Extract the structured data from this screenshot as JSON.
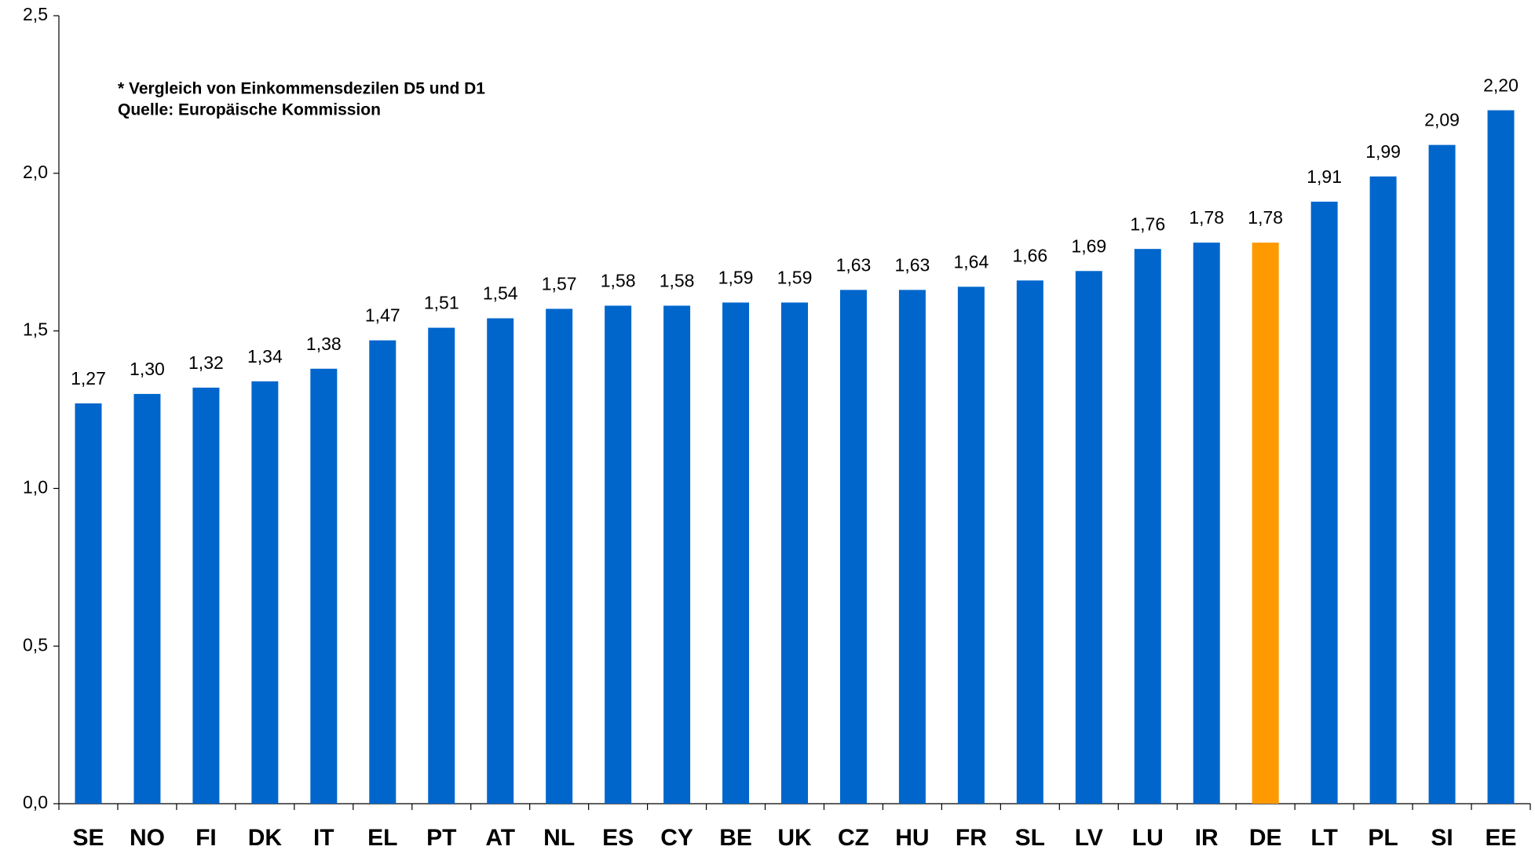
{
  "chart_data": {
    "type": "bar",
    "annotations": [
      "* Vergleich von Einkommensdezilen D5 und D1",
      "Quelle: Europäische Kommission"
    ],
    "categories": [
      "SE",
      "NO",
      "FI",
      "DK",
      "IT",
      "EL",
      "PT",
      "AT",
      "NL",
      "ES",
      "CY",
      "BE",
      "UK",
      "CZ",
      "HU",
      "FR",
      "SL",
      "LV",
      "LU",
      "IR",
      "DE",
      "LT",
      "PL",
      "SI",
      "EE"
    ],
    "values": [
      1.27,
      1.3,
      1.32,
      1.34,
      1.38,
      1.47,
      1.51,
      1.54,
      1.57,
      1.58,
      1.58,
      1.59,
      1.59,
      1.63,
      1.63,
      1.64,
      1.66,
      1.69,
      1.76,
      1.78,
      1.78,
      1.91,
      1.99,
      2.09,
      2.2
    ],
    "value_labels": [
      "1,27",
      "1,30",
      "1,32",
      "1,34",
      "1,38",
      "1,47",
      "1,51",
      "1,54",
      "1,57",
      "1,58",
      "1,58",
      "1,59",
      "1,59",
      "1,63",
      "1,63",
      "1,64",
      "1,66",
      "1,69",
      "1,76",
      "1,78",
      "1,78",
      "1,91",
      "1,99",
      "2,09",
      "2,20"
    ],
    "colors": [
      "#0066cc",
      "#0066cc",
      "#0066cc",
      "#0066cc",
      "#0066cc",
      "#0066cc",
      "#0066cc",
      "#0066cc",
      "#0066cc",
      "#0066cc",
      "#0066cc",
      "#0066cc",
      "#0066cc",
      "#0066cc",
      "#0066cc",
      "#0066cc",
      "#0066cc",
      "#0066cc",
      "#0066cc",
      "#0066cc",
      "#ff9900",
      "#0066cc",
      "#0066cc",
      "#0066cc",
      "#0066cc"
    ],
    "ylim": [
      0,
      2.5
    ],
    "yticks": [
      {
        "value": 0,
        "label": "0,0"
      },
      {
        "value": 0.5,
        "label": "0,5"
      },
      {
        "value": 1,
        "label": "1,0"
      },
      {
        "value": 1.5,
        "label": "1,5"
      },
      {
        "value": 2,
        "label": "2,0"
      },
      {
        "value": 2.5,
        "label": "2,5"
      }
    ],
    "grid": false
  }
}
